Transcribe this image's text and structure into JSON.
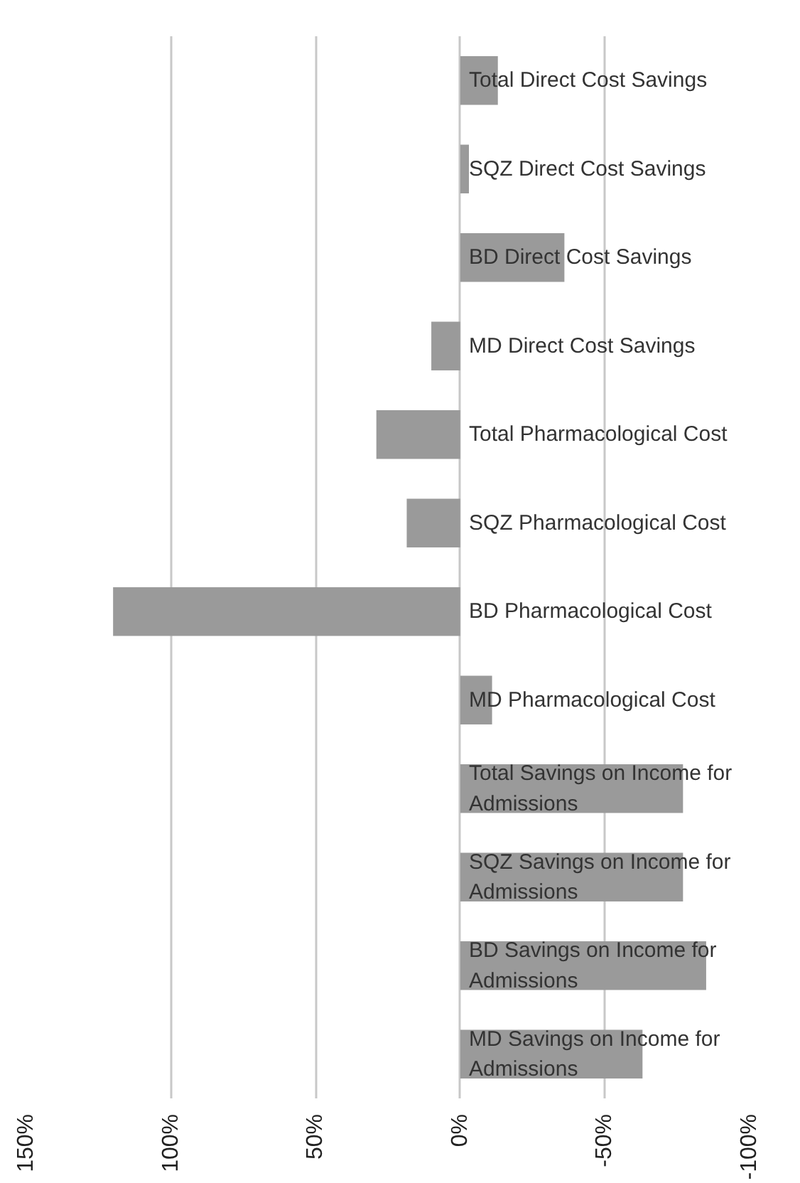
{
  "chart_data": {
    "type": "bar",
    "orientation": "horizontal",
    "categories": [
      "Total Direct Cost Savings",
      "SQZ Direct Cost Savings",
      "BD Direct Cost Savings",
      "MD Direct Cost Savings",
      "Total Pharmacological Cost",
      "SQZ Pharmacological Cost",
      "BD Pharmacological Cost",
      "MD Pharmacological Cost",
      "Total Savings on Income for Admissions",
      "SQZ Savings on Income for Admissions",
      "BD Savings on Income for Admissions",
      "MD Savings on Income for Admissions"
    ],
    "values": [
      -13,
      -3,
      -36,
      10,
      29,
      18.5,
      120,
      -11,
      -77,
      -77,
      -85,
      -63
    ],
    "color": "#9a9a9a",
    "xlim": [
      150,
      -100
    ],
    "xticks": [
      {
        "value": 150,
        "label": "150%"
      },
      {
        "value": 100,
        "label": "100%"
      },
      {
        "value": 50,
        "label": "50%"
      },
      {
        "value": 0,
        "label": "0%"
      },
      {
        "value": -50,
        "label": "-50%"
      },
      {
        "value": -100,
        "label": "-100%"
      }
    ],
    "grid": "x"
  }
}
